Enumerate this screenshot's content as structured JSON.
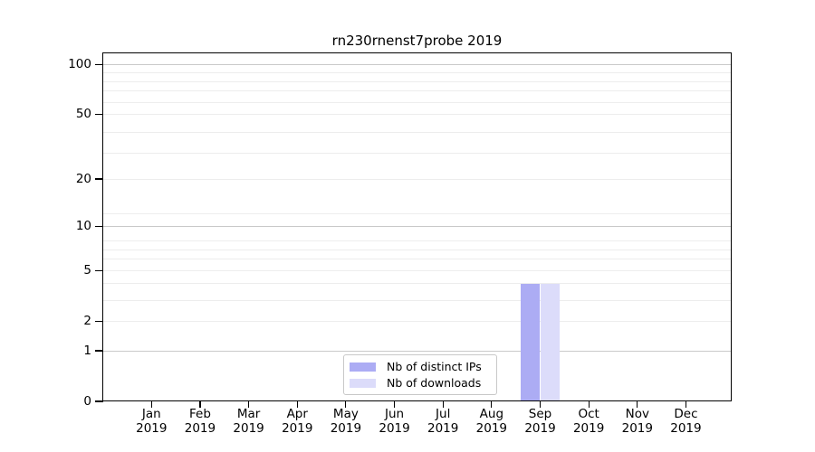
{
  "chart_data": {
    "type": "bar",
    "title": "rn230rnenst7probe 2019",
    "categories": [
      "Jan",
      "Feb",
      "Mar",
      "Apr",
      "May",
      "Jun",
      "Jul",
      "Aug",
      "Sep",
      "Oct",
      "Nov",
      "Dec"
    ],
    "year_label": "2019",
    "series": [
      {
        "name": "Nb of distinct IPs",
        "color": "#acacf4",
        "values": [
          0,
          0,
          0,
          0,
          0,
          0,
          0,
          0,
          4,
          0,
          0,
          0
        ]
      },
      {
        "name": "Nb of downloads",
        "color": "#dcdcfa",
        "values": [
          0,
          0,
          0,
          0,
          0,
          0,
          0,
          0,
          4,
          0,
          0,
          0
        ]
      }
    ],
    "yscale": "log(y+1)",
    "yticks": [
      0,
      1,
      2,
      5,
      10,
      20,
      50,
      100
    ],
    "ylim": [
      0,
      117
    ],
    "major_gridlines": [
      1,
      10,
      100
    ],
    "minor_gridlines": [
      2,
      3,
      4,
      5,
      6,
      7,
      8,
      12,
      20,
      29,
      39,
      50,
      59,
      69,
      79,
      89
    ],
    "legend_position": "lower center",
    "colors": {
      "grid_major": "#c9c9c9",
      "grid_minor": "#ededed",
      "axis": "#000000",
      "background": "#ffffff"
    }
  }
}
